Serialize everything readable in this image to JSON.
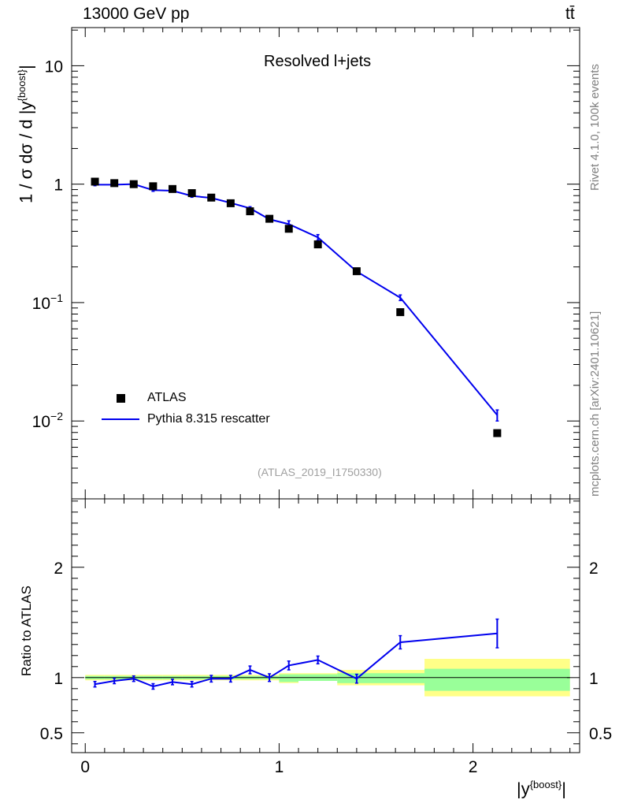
{
  "header": {
    "energy_label": "13000 GeV pp",
    "process_label": "tt̄"
  },
  "plot_title": "Resolved l+jets",
  "analysis_id": "(ATLAS_2019_I1750330)",
  "side_labels": {
    "rivet": "Rivet 4.1.0,  100k events",
    "source": "mcplots.cern.ch [arXiv:2401.10621]"
  },
  "legend": {
    "data_label": "ATLAS",
    "mc_label": "Pythia 8.315 rescatter"
  },
  "axes": {
    "main_ylabel": "1 / σ dσ / d |y",
    "main_ylabel_sup": "{boost}",
    "main_ylabel_tail": "|",
    "ratio_ylabel": "Ratio to ATLAS",
    "xlabel": "|y",
    "xlabel_sup": "{boost}",
    "xlabel_tail": "|"
  },
  "colors": {
    "mc_line": "#0000ee",
    "data_marker": "#000000",
    "band_inner": "#99ff99",
    "band_outer": "#ffff88"
  },
  "chart_data": {
    "type": "scatter",
    "x_ticks": [
      "0",
      "1",
      "2"
    ],
    "xlim": [
      -0.07,
      2.55
    ],
    "main": {
      "yscale": "log",
      "ylim": [
        0.0022,
        21
      ],
      "y_tick_labels": [
        "10",
        "1",
        "10^-1",
        "10^-2"
      ],
      "y_tick_values": [
        10,
        1,
        0.1,
        0.01
      ]
    },
    "ratio": {
      "ylim": [
        0.32,
        2.62
      ],
      "y_tick_labels": [
        "2",
        "1",
        "0.5"
      ],
      "y_tick_values": [
        2,
        1,
        0.5
      ]
    },
    "bin_edges": [
      0.0,
      0.1,
      0.2,
      0.3,
      0.4,
      0.5,
      0.6,
      0.7,
      0.8,
      0.9,
      1.0,
      1.1,
      1.3,
      1.5,
      1.75,
      2.5
    ],
    "series": [
      {
        "name": "ATLAS",
        "x": [
          0.05,
          0.15,
          0.25,
          0.35,
          0.45,
          0.55,
          0.65,
          0.75,
          0.85,
          0.95,
          1.05,
          1.2,
          1.4,
          1.625,
          2.125
        ],
        "y": [
          1.05,
          1.02,
          1.0,
          0.96,
          0.91,
          0.84,
          0.77,
          0.69,
          0.59,
          0.51,
          0.42,
          0.31,
          0.184,
          0.083,
          0.0079
        ]
      },
      {
        "name": "Pythia 8.315 rescatter",
        "x": [
          0.05,
          0.15,
          0.25,
          0.35,
          0.45,
          0.55,
          0.65,
          0.75,
          0.85,
          0.95,
          1.05,
          1.2,
          1.4,
          1.625,
          2.125
        ],
        "y": [
          0.99,
          0.99,
          1.0,
          0.89,
          0.88,
          0.795,
          0.765,
          0.695,
          0.625,
          0.505,
          0.46,
          0.355,
          0.183,
          0.11,
          0.0112
        ],
        "yerr": [
          0.02,
          0.02,
          0.02,
          0.02,
          0.02,
          0.02,
          0.02,
          0.02,
          0.02,
          0.015,
          0.03,
          0.02,
          0.005,
          0.006,
          0.0012
        ]
      }
    ],
    "ratio_series": {
      "name": "Pythia 8.315 rescatter / ATLAS",
      "x": [
        0.05,
        0.15,
        0.25,
        0.35,
        0.45,
        0.55,
        0.65,
        0.75,
        0.85,
        0.95,
        1.05,
        1.2,
        1.4,
        1.625,
        2.125
      ],
      "y": [
        0.94,
        0.97,
        0.99,
        0.92,
        0.96,
        0.94,
        0.99,
        0.99,
        1.07,
        1.0,
        1.11,
        1.16,
        0.99,
        1.32,
        1.4
      ],
      "yerr": [
        0.025,
        0.025,
        0.025,
        0.025,
        0.025,
        0.025,
        0.03,
        0.03,
        0.035,
        0.035,
        0.04,
        0.035,
        0.04,
        0.06,
        0.13
      ]
    },
    "uncertainty_band": {
      "inner": [
        [
          0.985,
          1.015
        ],
        [
          0.985,
          1.015
        ],
        [
          0.985,
          1.015
        ],
        [
          0.985,
          1.015
        ],
        [
          0.985,
          1.015
        ],
        [
          0.985,
          1.015
        ],
        [
          0.985,
          1.015
        ],
        [
          0.985,
          1.015
        ],
        [
          0.985,
          1.015
        ],
        [
          0.985,
          1.015
        ],
        [
          0.96,
          1.03
        ],
        [
          0.97,
          1.03
        ],
        [
          0.95,
          1.04
        ],
        [
          0.95,
          1.04
        ],
        [
          0.88,
          1.08
        ]
      ],
      "outer": [
        [
          0.975,
          1.025
        ],
        [
          0.975,
          1.025
        ],
        [
          0.975,
          1.025
        ],
        [
          0.975,
          1.025
        ],
        [
          0.975,
          1.025
        ],
        [
          0.975,
          1.025
        ],
        [
          0.975,
          1.025
        ],
        [
          0.975,
          1.025
        ],
        [
          0.975,
          1.025
        ],
        [
          0.975,
          1.025
        ],
        [
          0.95,
          1.04
        ],
        [
          0.97,
          1.04
        ],
        [
          0.93,
          1.07
        ],
        [
          0.93,
          1.07
        ],
        [
          0.83,
          1.17
        ]
      ]
    }
  }
}
